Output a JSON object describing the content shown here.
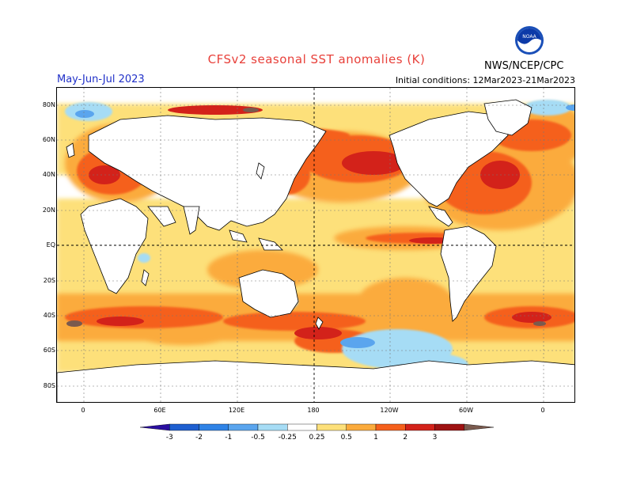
{
  "header": {
    "title": "CFSv2 seasonal SST anomalies (K)",
    "season": "May-Jun-Jul 2023",
    "initial_conditions": "Initial conditions: 12Mar2023-21Mar2023",
    "agency": "NWS/NCEP/CPC",
    "logo_text": "NOAA"
  },
  "axes": {
    "lat_labels": [
      "80N",
      "60N",
      "40N",
      "20N",
      "EQ",
      "20S",
      "40S",
      "60S",
      "80S"
    ],
    "lon_labels": [
      "0",
      "60E",
      "120E",
      "180",
      "120W",
      "60W",
      "0"
    ]
  },
  "legend": {
    "tick_labels": [
      "-3",
      "-2",
      "-1",
      "-0.5",
      "-0.25",
      "0.25",
      "0.5",
      "1",
      "2",
      "3"
    ],
    "colors": [
      "#2a0fa0",
      "#1e5fd0",
      "#2f83e6",
      "#5aa5ee",
      "#a6dcf5",
      "#ffffff",
      "#fde07a",
      "#fbab3c",
      "#f5601c",
      "#d3221a",
      "#9e1212",
      "#7a5a4e"
    ]
  },
  "colors": {
    "title": "#e8403a",
    "season": "#2030c8",
    "land": "#ffffff"
  }
}
